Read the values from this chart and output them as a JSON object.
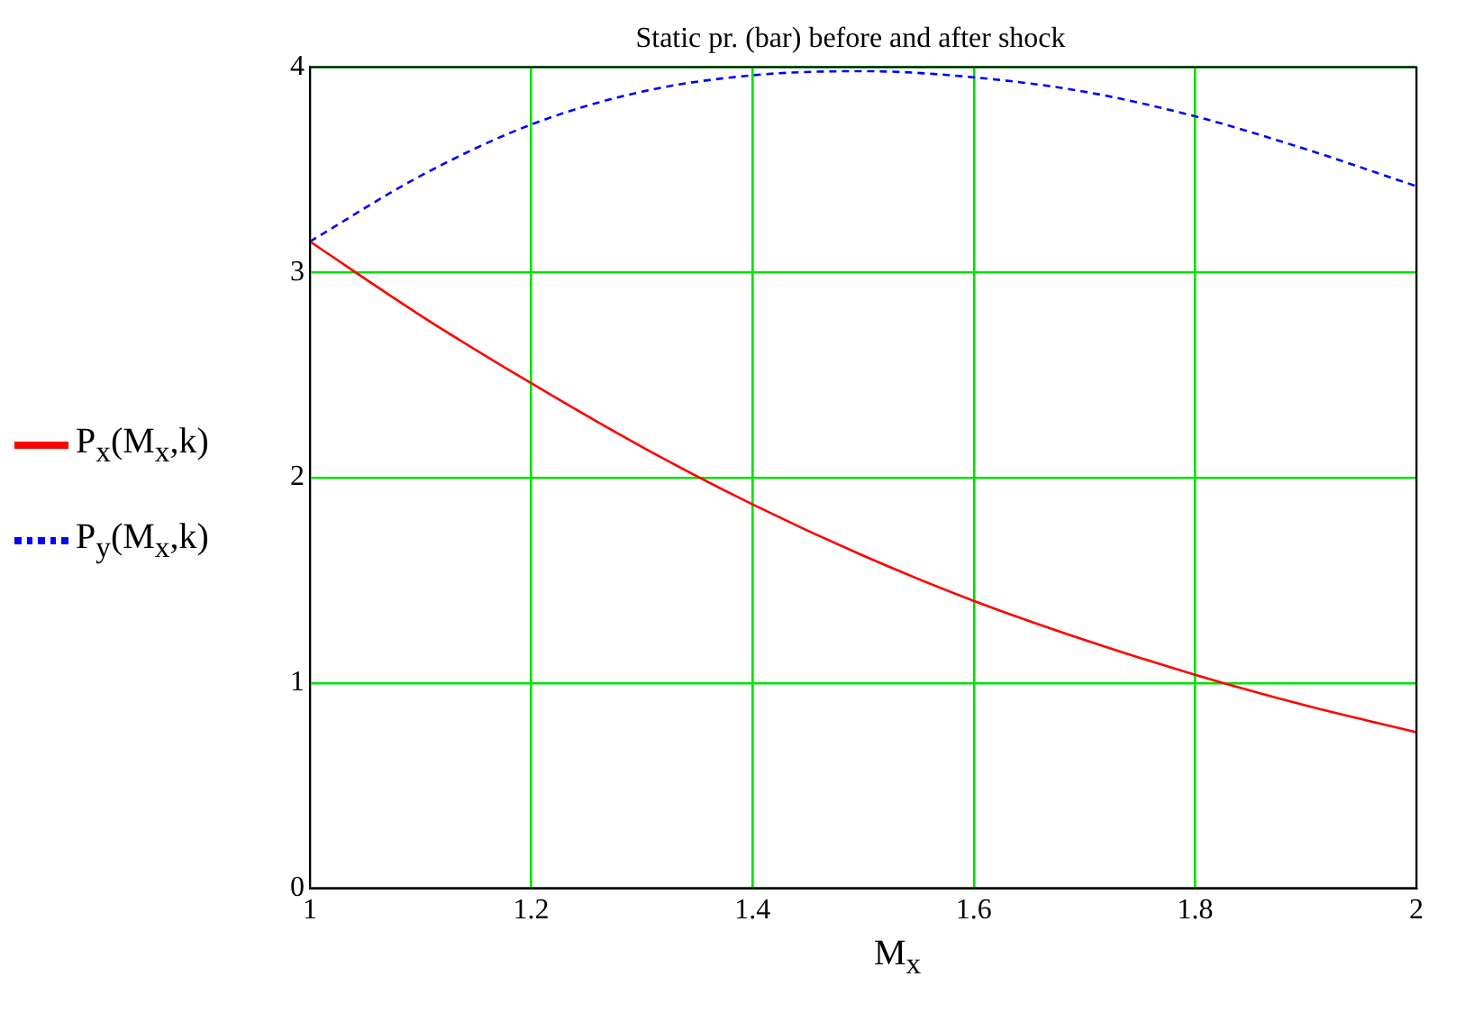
{
  "chart_data": {
    "type": "line",
    "title": "Static pr. (bar) before and after shock",
    "xlabel": "M$_{x}$",
    "x": [
      1,
      1.1,
      1.2,
      1.3,
      1.4,
      1.5,
      1.6,
      1.7,
      1.8,
      1.9,
      2
    ],
    "series": [
      {
        "name": "P$_{x}$(M$_{x}$,k)",
        "color": "#ff0000",
        "line_style": "solid",
        "values": [
          3.15,
          2.79,
          2.46,
          2.15,
          1.87,
          1.62,
          1.4,
          1.21,
          1.04,
          0.89,
          0.76
        ]
      },
      {
        "name": "P$_{y}$(M$_{x}$,k)",
        "color": "#0000ff",
        "line_style": "dashed",
        "values": [
          3.15,
          3.47,
          3.72,
          3.88,
          3.96,
          3.98,
          3.95,
          3.88,
          3.76,
          3.6,
          3.42
        ]
      }
    ],
    "xlim": [
      1,
      2
    ],
    "xticks": [
      1,
      1.2,
      1.4,
      1.6,
      1.8,
      2
    ],
    "ylim": [
      0,
      4
    ],
    "yticks": [
      0,
      1,
      2,
      3,
      4
    ],
    "grid": true,
    "legend": "left",
    "marker": "none"
  }
}
